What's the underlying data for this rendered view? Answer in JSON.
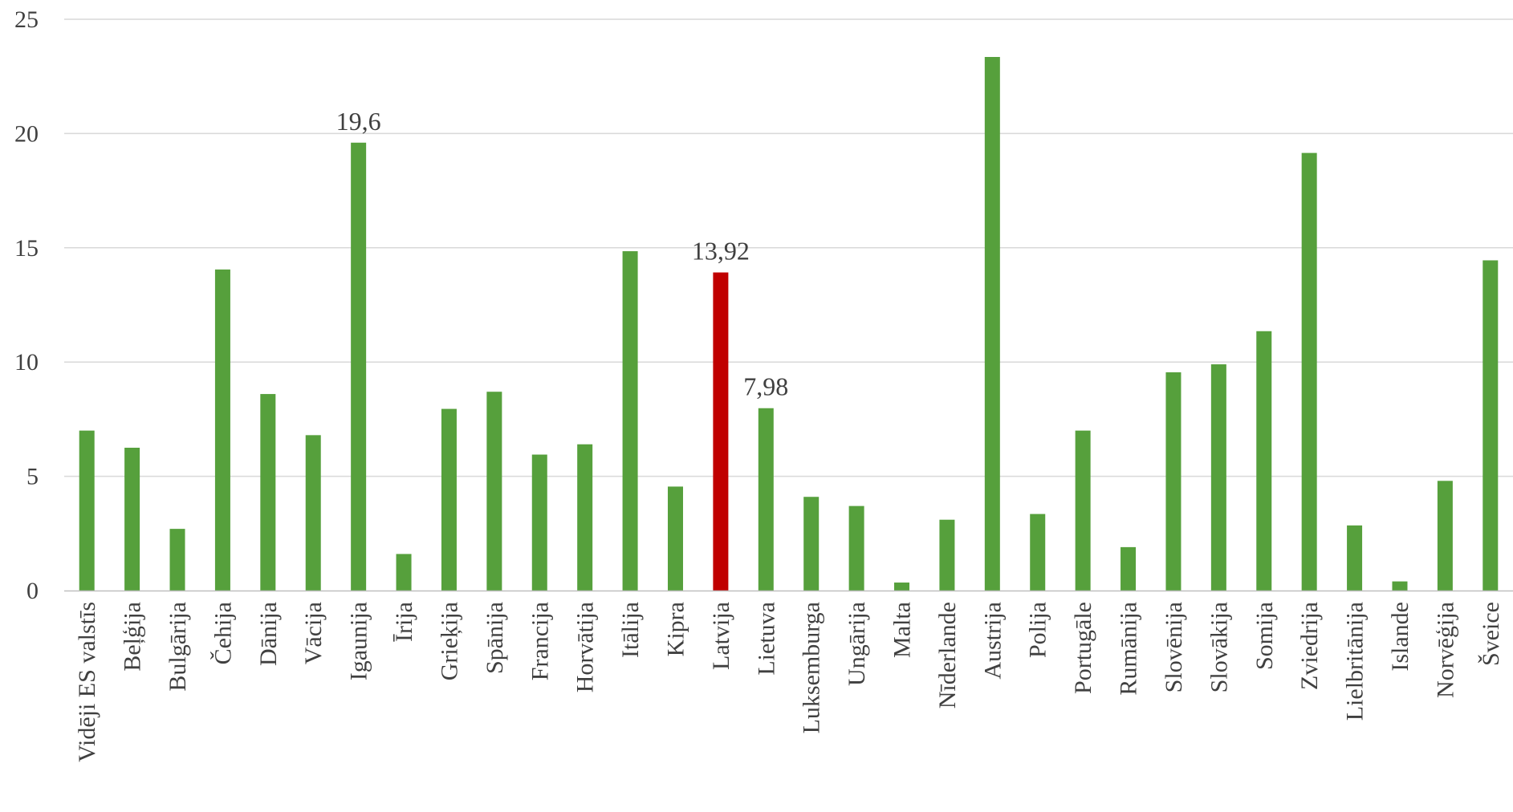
{
  "chart_data": {
    "type": "bar",
    "title": "",
    "xlabel": "",
    "ylabel": "",
    "ylim": [
      0,
      25
    ],
    "yticks": [
      0,
      5,
      10,
      15,
      20,
      25
    ],
    "grid": true,
    "legend": "none",
    "colors": {
      "default": "#56a03c",
      "highlight": "#c00000"
    },
    "highlight_category": "Latvija",
    "categories": [
      "Vidēji ES valstīs",
      "Beļģija",
      "Bulgārija",
      "Čehija",
      "Dānija",
      "Vācija",
      "Igaunija",
      "Īrija",
      "Grieķija",
      "Spānija",
      "Francija",
      "Horvātija",
      "Itālija",
      "Kipra",
      "Latvija",
      "Lietuva",
      "Luksemburga",
      "Ungārija",
      "Malta",
      "Nīderlande",
      "Austrija",
      "Polija",
      "Portugāle",
      "Rumānija",
      "Slovēnija",
      "Slovākija",
      "Somija",
      "Zviedrija",
      "Lielbritānija",
      "Islande",
      "Norvēģija",
      "Šveice"
    ],
    "values": [
      7.0,
      6.25,
      2.7,
      14.05,
      8.6,
      6.8,
      19.6,
      1.6,
      7.95,
      8.7,
      5.95,
      6.4,
      14.85,
      4.55,
      13.92,
      7.98,
      4.1,
      3.7,
      0.35,
      3.1,
      23.35,
      3.35,
      7.0,
      1.9,
      9.55,
      9.9,
      11.35,
      19.15,
      2.85,
      0.4,
      4.8,
      14.45
    ],
    "data_labels": [
      {
        "category": "Igaunija",
        "text": "19,6"
      },
      {
        "category": "Latvija",
        "text": "13,92"
      },
      {
        "category": "Lietuva",
        "text": "7,98"
      }
    ]
  }
}
